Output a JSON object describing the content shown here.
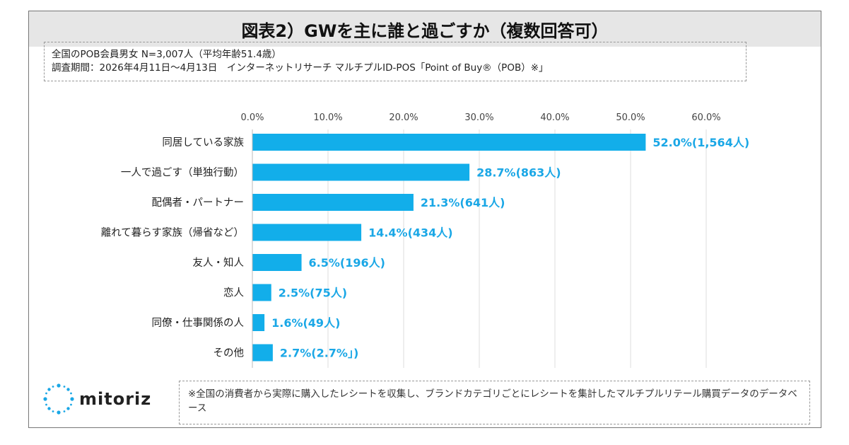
{
  "title": "図表2）GWを主に誰と過ごすか（複数回答可）",
  "info": {
    "line1": "全国のPOB会員男女 N=3,007人（平均年齢51.4歳）",
    "line2": "調査期間：2026年4月11日〜4月13日　インターネットリサーチ マルチプルID-POS「Point of Buy®（POB）※」"
  },
  "logo": {
    "text": "mitoriz",
    "icon": "sparkle-logo-icon"
  },
  "footnote": "※全国の消費者から実際に購入したレシートを収集し、ブランドカテゴリごとにレシートを集計したマルチプルリテール購買データのデータベース",
  "colors": {
    "bar": "#12aeea",
    "label": "#1aa7e6",
    "grid": "#dddddd"
  },
  "chart_data": {
    "type": "bar",
    "orientation": "horizontal",
    "categories": [
      "同居している家族",
      "一人で過ごす（単独行動）",
      "配偶者・パートナー",
      "離れて暮らす家族（帰省など）",
      "友人・知人",
      "恋人",
      "同僚・仕事関係の人",
      "その他"
    ],
    "values": [
      52.0,
      28.7,
      21.3,
      14.4,
      6.5,
      2.5,
      1.6,
      2.7
    ],
    "data_labels": [
      "52.0%(1,564人)",
      "28.7%(863人)",
      "21.3%(641人)",
      "14.4%(434人)",
      "6.5%(196人)",
      "2.5%(75人)",
      "1.6%(49人)",
      "2.7%(2.7%」)"
    ],
    "xticks": [
      "0.0%",
      "10.0%",
      "20.0%",
      "30.0%",
      "40.0%",
      "50.0%",
      "60.0%"
    ],
    "xlim": [
      0,
      60
    ],
    "grid": true,
    "legend": "none"
  }
}
